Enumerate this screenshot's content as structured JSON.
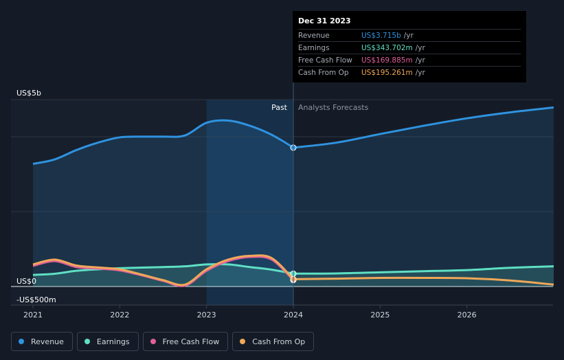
{
  "chart_data": {
    "type": "area",
    "title": "",
    "y_axis_labels": [
      "US$5b",
      "US$0",
      "-US$500m"
    ],
    "ylim": [
      -500,
      5000
    ],
    "xlim": [
      2021.0,
      2027.0
    ],
    "x_ticks": [
      2021,
      2022,
      2023,
      2024,
      2025,
      2026
    ],
    "x_tick_labels": [
      "2021",
      "2022",
      "2023",
      "2024",
      "2025",
      "2026"
    ],
    "past_label": "Past",
    "forecast_label": "Analysts Forecasts",
    "past_end_x": 2024.0,
    "highlight_range": [
      2023.0,
      2024.0
    ],
    "series": [
      {
        "name": "Revenue",
        "color": "#2f93e0",
        "fill": true,
        "points": [
          [
            2021.0,
            3280
          ],
          [
            2021.25,
            3400
          ],
          [
            2021.5,
            3650
          ],
          [
            2021.75,
            3850
          ],
          [
            2022.0,
            3990
          ],
          [
            2022.25,
            4010
          ],
          [
            2022.5,
            4010
          ],
          [
            2022.75,
            4040
          ],
          [
            2023.0,
            4380
          ],
          [
            2023.25,
            4440
          ],
          [
            2023.5,
            4300
          ],
          [
            2023.75,
            4060
          ],
          [
            2024.0,
            3715
          ]
        ],
        "forecast_points": [
          [
            2024.0,
            3715
          ],
          [
            2024.5,
            3850
          ],
          [
            2025.0,
            4080
          ],
          [
            2025.5,
            4300
          ],
          [
            2026.0,
            4500
          ],
          [
            2026.5,
            4660
          ],
          [
            2027.0,
            4790
          ]
        ]
      },
      {
        "name": "Earnings",
        "color": "#5ee0c4",
        "fill": true,
        "points": [
          [
            2021.0,
            310
          ],
          [
            2021.25,
            340
          ],
          [
            2021.5,
            420
          ],
          [
            2021.75,
            460
          ],
          [
            2022.0,
            490
          ],
          [
            2022.5,
            520
          ],
          [
            2022.75,
            540
          ],
          [
            2023.0,
            590
          ],
          [
            2023.25,
            590
          ],
          [
            2023.5,
            520
          ],
          [
            2023.75,
            450
          ],
          [
            2024.0,
            344
          ]
        ],
        "forecast_points": [
          [
            2024.0,
            344
          ],
          [
            2024.5,
            350
          ],
          [
            2025.0,
            380
          ],
          [
            2025.5,
            410
          ],
          [
            2026.0,
            440
          ],
          [
            2026.5,
            500
          ],
          [
            2027.0,
            540
          ]
        ]
      },
      {
        "name": "Free Cash Flow",
        "color": "#e0609c",
        "fill": false,
        "points": [
          [
            2021.0,
            550
          ],
          [
            2021.25,
            680
          ],
          [
            2021.5,
            520
          ],
          [
            2021.75,
            480
          ],
          [
            2022.0,
            430
          ],
          [
            2022.25,
            300
          ],
          [
            2022.5,
            150
          ],
          [
            2022.75,
            20
          ],
          [
            2023.0,
            420
          ],
          [
            2023.25,
            680
          ],
          [
            2023.5,
            790
          ],
          [
            2023.75,
            720
          ],
          [
            2024.0,
            170
          ]
        ],
        "forecast_points": []
      },
      {
        "name": "Cash From Op",
        "color": "#f0a858",
        "fill": false,
        "points": [
          [
            2021.0,
            590
          ],
          [
            2021.25,
            720
          ],
          [
            2021.5,
            560
          ],
          [
            2021.75,
            510
          ],
          [
            2022.0,
            460
          ],
          [
            2022.25,
            320
          ],
          [
            2022.5,
            170
          ],
          [
            2022.75,
            50
          ],
          [
            2023.0,
            460
          ],
          [
            2023.25,
            720
          ],
          [
            2023.5,
            820
          ],
          [
            2023.75,
            760
          ],
          [
            2024.0,
            195
          ]
        ],
        "forecast_points": [
          [
            2024.0,
            195
          ],
          [
            2024.5,
            210
          ],
          [
            2025.0,
            230
          ],
          [
            2025.5,
            230
          ],
          [
            2026.0,
            220
          ],
          [
            2026.5,
            160
          ],
          [
            2027.0,
            50
          ]
        ]
      }
    ]
  },
  "tooltip": {
    "date": "Dec 31 2023",
    "rows": [
      {
        "label": "Revenue",
        "value": "US$3.715b",
        "unit": "/yr",
        "color": "#2f93e0"
      },
      {
        "label": "Earnings",
        "value": "US$343.702m",
        "unit": "/yr",
        "color": "#5ee0c4"
      },
      {
        "label": "Free Cash Flow",
        "value": "US$169.885m",
        "unit": "/yr",
        "color": "#e0609c"
      },
      {
        "label": "Cash From Op",
        "value": "US$195.261m",
        "unit": "/yr",
        "color": "#f0a858"
      }
    ]
  },
  "legend": [
    {
      "label": "Revenue",
      "color": "#2f93e0"
    },
    {
      "label": "Earnings",
      "color": "#5ee0c4"
    },
    {
      "label": "Free Cash Flow",
      "color": "#e0609c"
    },
    {
      "label": "Cash From Op",
      "color": "#f0a858"
    }
  ]
}
